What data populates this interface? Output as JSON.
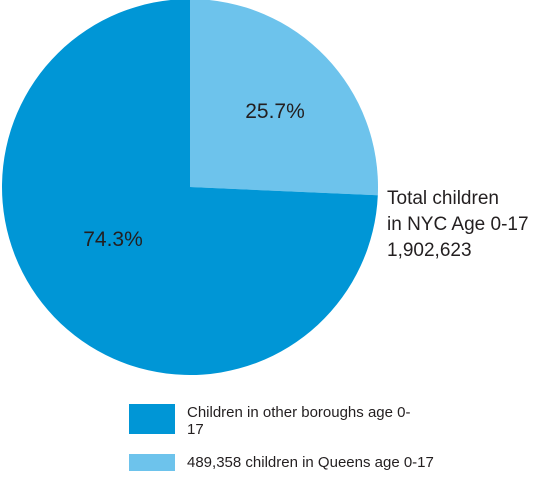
{
  "chart_data": {
    "type": "pie",
    "slices": [
      {
        "label": "Children in other boroughs age 0-17",
        "value": 74.3,
        "display": "74.3%",
        "color": "#0096d6"
      },
      {
        "label": "489,358 children in Queens age 0-17",
        "value": 25.7,
        "display": "25.7%",
        "color": "#6dc3ec"
      }
    ]
  },
  "annotation": {
    "line1": "Total children",
    "line2": "in NYC Age 0-17",
    "line3": "1,902,623"
  },
  "legend": [
    {
      "text": "Children in other boroughs age 0-17",
      "color": "#0096d6"
    },
    {
      "text": "489,358 children in Queens age 0-17",
      "color": "#6dc3ec"
    }
  ]
}
